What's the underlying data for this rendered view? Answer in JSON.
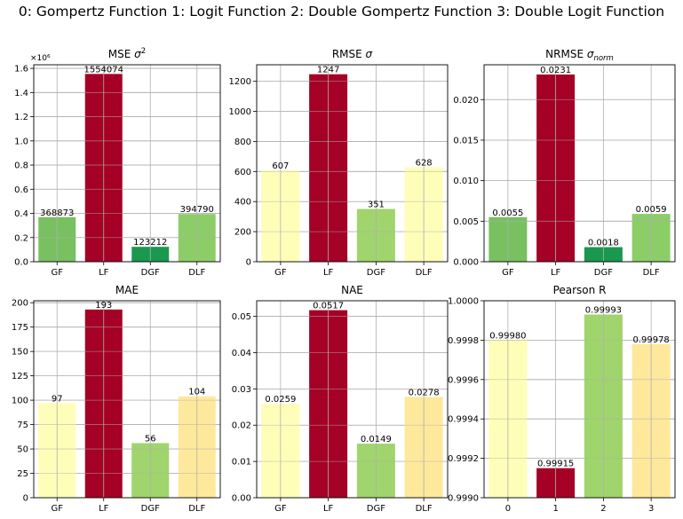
{
  "figure": {
    "suptitle": "0: Gompertz Function   1: Logit Function   2: Double Gompertz Function   3: Double Logit Function"
  },
  "chart_data": [
    {
      "type": "bar",
      "title": "MSE σ²",
      "categories": [
        "GF",
        "LF",
        "DGF",
        "DLF"
      ],
      "values": [
        368873,
        1554074,
        123212,
        394790
      ],
      "value_labels": [
        "368873",
        "1554074",
        "123212",
        "394790"
      ],
      "colors": [
        "#78c060",
        "#a50026",
        "#1a9850",
        "#8ccd68"
      ],
      "ylim": [
        0,
        1630000
      ],
      "yticks": [
        0,
        200000,
        400000,
        600000,
        800000,
        1000000,
        1200000,
        1400000,
        1600000
      ],
      "ytick_labels": [
        "0.0",
        "0.2",
        "0.4",
        "0.6",
        "0.8",
        "1.0",
        "1.2",
        "1.4",
        "1.6"
      ],
      "offset_text": "×10⁶",
      "grid": true
    },
    {
      "type": "bar",
      "title": "RMSE σ",
      "categories": [
        "GF",
        "LF",
        "DGF",
        "DLF"
      ],
      "values": [
        607,
        1247,
        351,
        628
      ],
      "value_labels": [
        "607",
        "1247",
        "351",
        "628"
      ],
      "colors": [
        "#fefeb8",
        "#a50026",
        "#a0d46c",
        "#fefeb8"
      ],
      "ylim": [
        0,
        1310
      ],
      "yticks": [
        0,
        200,
        400,
        600,
        800,
        1000,
        1200
      ],
      "ytick_labels": [
        "0",
        "200",
        "400",
        "600",
        "800",
        "1000",
        "1200"
      ],
      "grid": true
    },
    {
      "type": "bar",
      "title": "NRMSE σnorm",
      "categories": [
        "GF",
        "LF",
        "DGF",
        "DLF"
      ],
      "values": [
        0.0055,
        0.0231,
        0.0018,
        0.0059
      ],
      "value_labels": [
        "0.0055",
        "0.0231",
        "0.0018",
        "0.0059"
      ],
      "colors": [
        "#78c060",
        "#a50026",
        "#1a9850",
        "#8ccd68"
      ],
      "ylim": [
        0,
        0.0243
      ],
      "yticks": [
        0,
        0.005,
        0.01,
        0.015,
        0.02
      ],
      "ytick_labels": [
        "0.000",
        "0.005",
        "0.010",
        "0.015",
        "0.020"
      ],
      "grid": true
    },
    {
      "type": "bar",
      "title": "MAE",
      "categories": [
        "GF",
        "LF",
        "DGF",
        "DLF"
      ],
      "values": [
        97,
        193,
        56,
        104
      ],
      "value_labels": [
        "97",
        "193",
        "56",
        "104"
      ],
      "colors": [
        "#fefeb8",
        "#a50026",
        "#a0d46c",
        "#fee89c"
      ],
      "ylim": [
        0,
        202
      ],
      "yticks": [
        0,
        25,
        50,
        75,
        100,
        125,
        150,
        175,
        200
      ],
      "ytick_labels": [
        "0",
        "25",
        "50",
        "75",
        "100",
        "125",
        "150",
        "175",
        "200"
      ],
      "grid": true
    },
    {
      "type": "bar",
      "title": "NAE",
      "categories": [
        "GF",
        "LF",
        "DGF",
        "DLF"
      ],
      "values": [
        0.0259,
        0.0517,
        0.0149,
        0.0278
      ],
      "value_labels": [
        "0.0259",
        "0.0517",
        "0.0149",
        "0.0278"
      ],
      "colors": [
        "#fefeb8",
        "#a50026",
        "#a0d46c",
        "#fee89c"
      ],
      "ylim": [
        0,
        0.0543
      ],
      "yticks": [
        0,
        0.01,
        0.02,
        0.03,
        0.04,
        0.05
      ],
      "ytick_labels": [
        "0.00",
        "0.01",
        "0.02",
        "0.03",
        "0.04",
        "0.05"
      ],
      "grid": true
    },
    {
      "type": "bar",
      "title": "Pearson R",
      "categories": [
        "0",
        "1",
        "2",
        "3"
      ],
      "values": [
        0.9998,
        0.99915,
        0.99993,
        0.99978
      ],
      "value_labels": [
        "0.99980",
        "0.99915",
        "0.99993",
        "0.99978"
      ],
      "colors": [
        "#fefeb8",
        "#a50026",
        "#a0d46c",
        "#fee89c"
      ],
      "ylim": [
        0.999,
        1.0
      ],
      "yticks": [
        0.999,
        0.9992,
        0.9994,
        0.9996,
        0.9998,
        1.0
      ],
      "ytick_labels": [
        "0.9990",
        "0.9992",
        "0.9994",
        "0.9996",
        "0.9998",
        "1.0000"
      ],
      "grid": true
    }
  ]
}
